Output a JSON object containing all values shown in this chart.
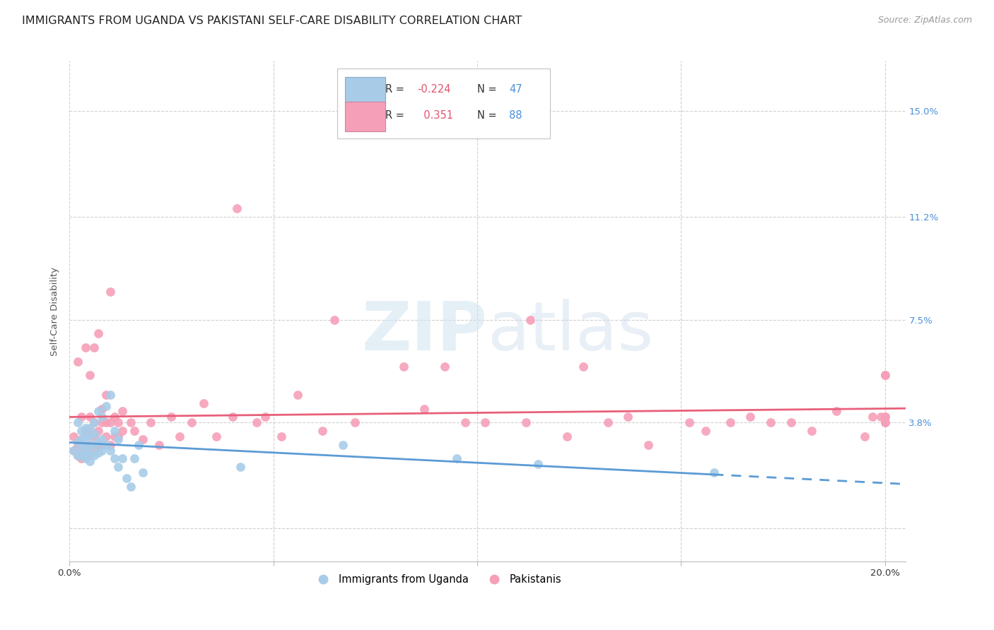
{
  "title": "IMMIGRANTS FROM UGANDA VS PAKISTANI SELF-CARE DISABILITY CORRELATION CHART",
  "source": "Source: ZipAtlas.com",
  "ylabel": "Self-Care Disability",
  "xlim": [
    0.0,
    0.205
  ],
  "ylim": [
    -0.012,
    0.168
  ],
  "yticks": [
    0.0,
    0.038,
    0.075,
    0.112,
    0.15
  ],
  "ytick_labels": [
    "",
    "3.8%",
    "7.5%",
    "11.2%",
    "15.0%"
  ],
  "xticks": [
    0.0,
    0.05,
    0.1,
    0.15,
    0.2
  ],
  "xtick_labels": [
    "0.0%",
    "",
    "",
    "",
    "20.0%"
  ],
  "grid_color": "#d0d0d0",
  "bg_color": "#ffffff",
  "scatter_blue": "#a8cce8",
  "scatter_pink": "#f5a0b8",
  "line_blue": "#5b9bd5",
  "line_pink": "#e8607a",
  "blue_x": [
    0.001,
    0.002,
    0.002,
    0.002,
    0.003,
    0.003,
    0.003,
    0.003,
    0.004,
    0.004,
    0.004,
    0.004,
    0.004,
    0.005,
    0.005,
    0.005,
    0.005,
    0.005,
    0.006,
    0.006,
    0.006,
    0.006,
    0.007,
    0.007,
    0.007,
    0.008,
    0.008,
    0.008,
    0.009,
    0.009,
    0.01,
    0.01,
    0.011,
    0.011,
    0.012,
    0.012,
    0.013,
    0.014,
    0.015,
    0.016,
    0.017,
    0.018,
    0.042,
    0.067,
    0.095,
    0.115,
    0.158
  ],
  "blue_y": [
    0.028,
    0.026,
    0.031,
    0.038,
    0.026,
    0.029,
    0.032,
    0.035,
    0.025,
    0.027,
    0.03,
    0.033,
    0.036,
    0.024,
    0.027,
    0.03,
    0.033,
    0.036,
    0.026,
    0.03,
    0.034,
    0.038,
    0.027,
    0.031,
    0.042,
    0.028,
    0.032,
    0.04,
    0.03,
    0.044,
    0.028,
    0.048,
    0.025,
    0.035,
    0.022,
    0.032,
    0.025,
    0.018,
    0.015,
    0.025,
    0.03,
    0.02,
    0.022,
    0.03,
    0.025,
    0.023,
    0.02
  ],
  "pink_x": [
    0.001,
    0.001,
    0.002,
    0.002,
    0.002,
    0.003,
    0.003,
    0.003,
    0.003,
    0.004,
    0.004,
    0.004,
    0.004,
    0.005,
    0.005,
    0.005,
    0.005,
    0.005,
    0.006,
    0.006,
    0.006,
    0.006,
    0.007,
    0.007,
    0.007,
    0.008,
    0.008,
    0.008,
    0.009,
    0.009,
    0.009,
    0.01,
    0.01,
    0.01,
    0.011,
    0.011,
    0.012,
    0.012,
    0.013,
    0.013,
    0.015,
    0.016,
    0.018,
    0.02,
    0.022,
    0.025,
    0.027,
    0.03,
    0.033,
    0.036,
    0.04,
    0.041,
    0.046,
    0.048,
    0.052,
    0.056,
    0.062,
    0.065,
    0.07,
    0.082,
    0.087,
    0.092,
    0.097,
    0.102,
    0.112,
    0.113,
    0.122,
    0.126,
    0.132,
    0.137,
    0.142,
    0.152,
    0.156,
    0.162,
    0.167,
    0.172,
    0.177,
    0.182,
    0.188,
    0.195,
    0.197,
    0.199,
    0.2,
    0.2,
    0.2,
    0.2,
    0.2,
    0.2
  ],
  "pink_y": [
    0.028,
    0.033,
    0.026,
    0.03,
    0.06,
    0.025,
    0.027,
    0.032,
    0.04,
    0.027,
    0.03,
    0.035,
    0.065,
    0.026,
    0.03,
    0.035,
    0.04,
    0.055,
    0.028,
    0.033,
    0.038,
    0.065,
    0.03,
    0.035,
    0.07,
    0.03,
    0.038,
    0.043,
    0.033,
    0.038,
    0.048,
    0.03,
    0.038,
    0.085,
    0.033,
    0.04,
    0.033,
    0.038,
    0.035,
    0.042,
    0.038,
    0.035,
    0.032,
    0.038,
    0.03,
    0.04,
    0.033,
    0.038,
    0.045,
    0.033,
    0.04,
    0.115,
    0.038,
    0.04,
    0.033,
    0.048,
    0.035,
    0.075,
    0.038,
    0.058,
    0.043,
    0.058,
    0.038,
    0.038,
    0.038,
    0.075,
    0.033,
    0.058,
    0.038,
    0.04,
    0.03,
    0.038,
    0.035,
    0.038,
    0.04,
    0.038,
    0.038,
    0.035,
    0.042,
    0.033,
    0.04,
    0.04,
    0.038,
    0.04,
    0.055,
    0.055,
    0.038,
    0.04
  ]
}
